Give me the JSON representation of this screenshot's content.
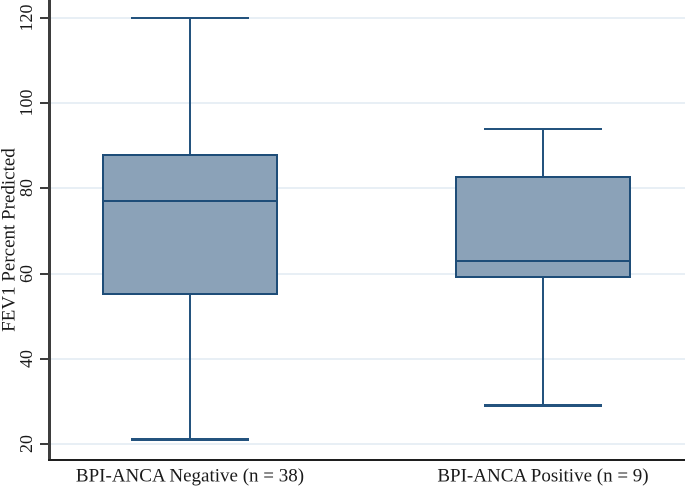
{
  "chart_data": {
    "type": "box",
    "title": "",
    "xlabel": "",
    "ylabel": "FEV1 Percent Predicted",
    "yticks": [
      20,
      40,
      60,
      80,
      100,
      120
    ],
    "ylim": [
      16,
      124
    ],
    "grid": true,
    "legend": "none",
    "groups": [
      {
        "label": "BPI-ANCA Negative (n = 38)",
        "n": 38,
        "min": 21,
        "q1": 55,
        "median": 77,
        "q3": 88,
        "max": 120
      },
      {
        "label": "BPI-ANCA Positive (n = 9)",
        "n": 9,
        "min": 29,
        "q1": 59,
        "median": 63,
        "q3": 83,
        "max": 94
      }
    ],
    "colors": {
      "box_fill": "#8ba2b8",
      "box_border": "#1e4d78",
      "whisker": "#24537e",
      "median": "#1e4d78",
      "gridline": "#e8eff5",
      "y_axis": "#3d3d3d",
      "x_axis": "#1f1f1f",
      "text": "#1a1a1a"
    }
  }
}
